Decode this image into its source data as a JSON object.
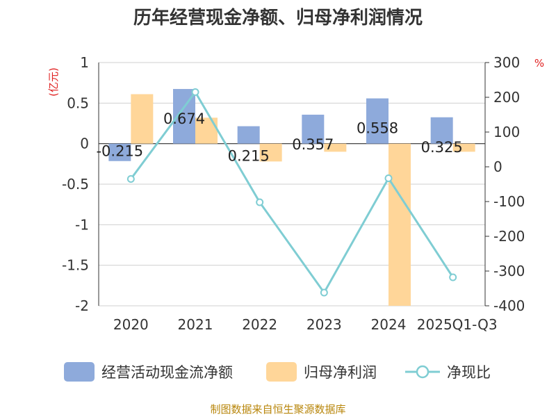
{
  "title": "历年经营现金净额、归母净利润情况",
  "source_text": "制图数据来自恒生聚源数据库",
  "colors": {
    "cash": "#8eaadb",
    "profit": "#ffd699",
    "ratio": "#7fcdd3",
    "unit": "#e02020",
    "source": "#b8860b"
  },
  "chart_data": {
    "type": "bar",
    "categories": [
      "2020",
      "2021",
      "2022",
      "2023",
      "2024",
      "2025Q1-Q3"
    ],
    "series": [
      {
        "name": "经营活动现金流净额",
        "type": "bar",
        "axis": "left",
        "values": [
          -0.215,
          0.674,
          0.215,
          0.357,
          0.558,
          0.325
        ],
        "labels": [
          "-0.215",
          "0.674",
          "0.215",
          "0.357",
          "0.558",
          "0.325"
        ]
      },
      {
        "name": "归母净利润",
        "type": "bar",
        "axis": "left",
        "values": [
          0.61,
          0.32,
          -0.22,
          -0.1,
          -2.0,
          -0.1
        ]
      },
      {
        "name": "净现比",
        "type": "line",
        "axis": "right",
        "values": [
          -35,
          215,
          -102,
          -362,
          -33,
          -318
        ]
      }
    ],
    "left_axis": {
      "unit": "(亿元)",
      "ylim": [
        -2,
        1
      ],
      "ticks": [
        "1",
        "0.5",
        "0",
        "-0.5",
        "-1",
        "-1.5",
        "-2"
      ]
    },
    "right_axis": {
      "unit": "%",
      "ylim": [
        -400,
        300
      ],
      "ticks": [
        "300",
        "200",
        "100",
        "0",
        "-100",
        "-200",
        "-300",
        "-400"
      ]
    },
    "legend": {
      "placement": "bottom",
      "items": [
        "经营活动现金流净额",
        "归母净利润",
        "净现比"
      ]
    },
    "grid": true
  }
}
